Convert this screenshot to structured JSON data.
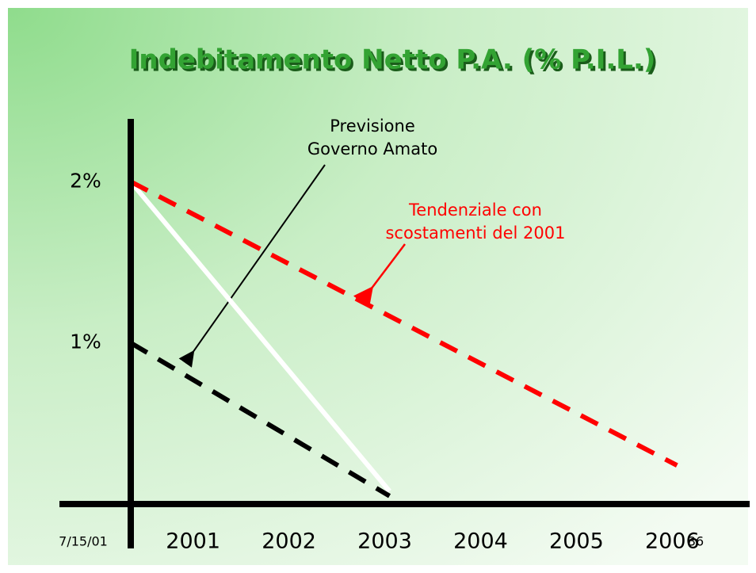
{
  "chart_data": {
    "type": "line",
    "title": "Indebitamento Netto P.A. (% P.I.L.)",
    "xlim": [
      2000.3,
      2006.7
    ],
    "xticks": [
      2001,
      2002,
      2003,
      2004,
      2005,
      2006
    ],
    "ylim": [
      0,
      2.4
    ],
    "yticks": [
      {
        "value": 1,
        "label": "1%"
      },
      {
        "value": 2,
        "label": "2%"
      }
    ],
    "series": [
      {
        "color": "#ffffff",
        "dashed": false,
        "x": [
          2000.3,
          2003
        ],
        "values": [
          2,
          0.08
        ]
      },
      {
        "color": "#000000",
        "dashed": true,
        "x": [
          2000.3,
          2003
        ],
        "values": [
          1,
          0.05
        ]
      },
      {
        "color": "#ff0000",
        "dashed": true,
        "x": [
          2000.3,
          2006
        ],
        "values": [
          2,
          0.24
        ]
      }
    ],
    "annotations": [
      {
        "color": "#000000",
        "lines": [
          "Previsione",
          "Governo Amato"
        ]
      },
      {
        "color": "#ff0000",
        "lines": [
          "Tendenziale con",
          "scostamenti del 2001"
        ]
      }
    ]
  },
  "footer": {
    "date": "7/15/01",
    "page": "36"
  }
}
